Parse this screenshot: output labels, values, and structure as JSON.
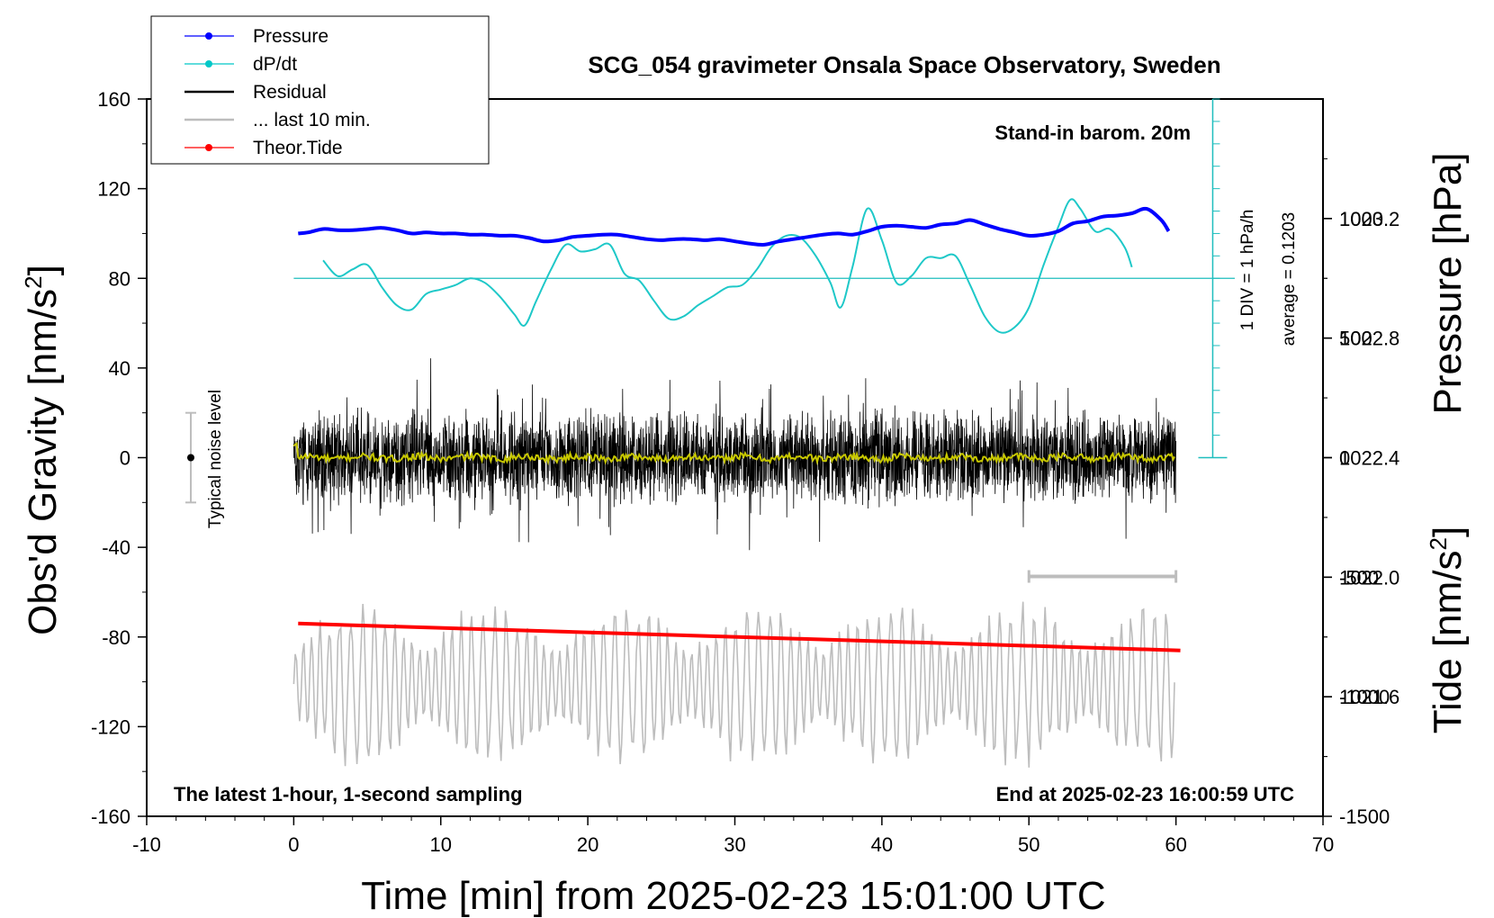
{
  "chart_data": {
    "type": "line",
    "title": "SCG_054 gravimeter Onsala Space Observatory, Sweden",
    "xlabel": "Time [min] from 2025-02-23 15:01:00 UTC",
    "ylabel_left": "Obs'd Gravity [nm/s",
    "ylabel_left_sup": "2",
    "ylabel_left_end": "]",
    "ylabel_right_pressure": "Pressure [hPa]",
    "ylabel_right_tide": "Tide [nm/s",
    "ylabel_right_tide_sup": "2",
    "ylabel_right_tide_end": "]",
    "xlim": [
      -10,
      70
    ],
    "ylim": [
      -160,
      160
    ],
    "x_ticks": [
      "-10",
      "0",
      "10",
      "20",
      "30",
      "40",
      "50",
      "60",
      "70"
    ],
    "y_ticks": [
      "160",
      "120",
      "80",
      "40",
      "0",
      "-40",
      "-80",
      "-120",
      "-160"
    ],
    "pressure_axis": {
      "range": [
        1021.2,
        1023.6
      ],
      "ticks": [
        "1023.2",
        "1022.8",
        "1022.4",
        "1022.0",
        "1021.6"
      ]
    },
    "tide_axis": {
      "range": [
        -1500,
        1500
      ],
      "ticks": [
        "1000",
        "500",
        "0",
        "-500",
        "-1000",
        "-1500"
      ]
    },
    "legend": [
      {
        "label": "Pressure",
        "color": "#0000ff",
        "marker": true
      },
      {
        "label": "dP/dt",
        "color": "#00c8c8",
        "marker": true
      },
      {
        "label": "Residual",
        "color": "#000000",
        "marker": false
      },
      {
        "label": "... last 10 min.",
        "color": "#bdbdbd",
        "marker": false
      },
      {
        "label": "Theor.Tide",
        "color": "#ff0000",
        "marker": true
      }
    ],
    "annotations": {
      "barometer_note": "Stand-in barom. 20m",
      "div_note": "1 DIV = 1 hPa/h",
      "average_note": "average = 0.1203",
      "noise_label": "Typical noise level",
      "bottom_left_note": "The latest 1-hour, 1-second sampling",
      "bottom_right_note": "End at 2025-02-23 16:00:59 UTC"
    },
    "noise_bar": {
      "x": -7,
      "center": 0,
      "half_range": 20
    },
    "last10_bar": {
      "x_start": 50,
      "x_end": 60,
      "y": -53
    },
    "dpdt_baseline_y": 80,
    "pressure_series": {
      "x": [
        0.3,
        1,
        2,
        3,
        4,
        5,
        6,
        7,
        8,
        9,
        10,
        11,
        12,
        13,
        14,
        15,
        16,
        17,
        18,
        19,
        20,
        21,
        22,
        23,
        24,
        25,
        26,
        27,
        28,
        29,
        30,
        31,
        32,
        33,
        34,
        35,
        36,
        37,
        38,
        39,
        40,
        41,
        42,
        43,
        44,
        45,
        46,
        47,
        48,
        49,
        50,
        51,
        52,
        53,
        54,
        55,
        56,
        57,
        58,
        59,
        59.5
      ],
      "y": [
        100,
        100.5,
        102,
        101.5,
        101.5,
        102,
        102.5,
        101.5,
        100,
        100.5,
        100,
        100,
        99.5,
        99.5,
        99,
        99,
        98,
        96.5,
        97,
        98.5,
        99,
        99.5,
        99.5,
        98.5,
        97.5,
        97,
        97.5,
        97.5,
        97,
        97.5,
        96.5,
        95.5,
        95,
        96.5,
        97.5,
        98.5,
        99.5,
        100,
        99.5,
        101,
        103,
        103.5,
        103,
        102.5,
        104,
        104.5,
        106,
        104,
        102,
        100.5,
        99,
        99.5,
        101,
        104.5,
        105.5,
        107.5,
        108,
        109,
        111,
        106,
        101
      ]
    },
    "dpdt_series": {
      "x": [
        2,
        3,
        4,
        5,
        6,
        7,
        8,
        9,
        10,
        11,
        12,
        13,
        14,
        15,
        15.7,
        16.5,
        17.5,
        18.5,
        19.5,
        20.5,
        21.5,
        22.5,
        23.5,
        24.5,
        25.5,
        26.5,
        27.5,
        28.5,
        29.5,
        30.5,
        31.5,
        32.5,
        33.5,
        34.5,
        35.5,
        36.5,
        37.2,
        38,
        39,
        40,
        41,
        42,
        43,
        44,
        45,
        46,
        47,
        48,
        49,
        50,
        51,
        52,
        52.8,
        53.5,
        54.5,
        55.5,
        56.5,
        57
      ],
      "y": [
        88,
        81,
        84,
        86,
        76,
        68,
        66,
        73,
        75,
        77,
        80,
        78,
        72,
        64,
        59,
        70,
        84,
        95,
        92,
        93,
        95,
        82,
        79,
        70,
        62,
        63,
        68,
        72,
        76,
        77,
        84,
        94,
        99,
        98,
        90,
        78,
        67,
        85,
        111,
        97,
        78,
        81,
        89,
        89,
        90,
        77,
        63,
        56,
        58,
        67,
        86,
        103,
        115,
        111,
        101,
        102,
        94,
        85
      ]
    },
    "tide_series": {
      "x": [
        0.3,
        60.3
      ],
      "y": [
        -74,
        -86
      ]
    }
  }
}
